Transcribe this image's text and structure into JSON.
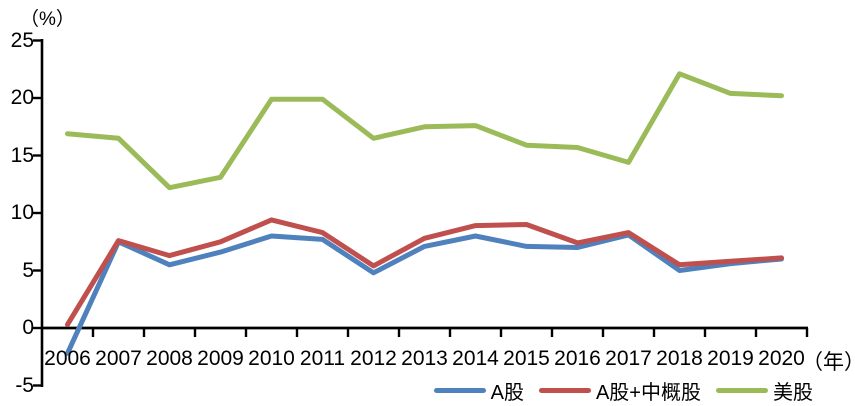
{
  "chart_data": {
    "type": "line",
    "title": "",
    "y_unit_label": "（%）",
    "x_unit_label": "（年）",
    "categories": [
      "2006",
      "2007",
      "2008",
      "2009",
      "2010",
      "2011",
      "2012",
      "2013",
      "2014",
      "2015",
      "2016",
      "2017",
      "2018",
      "2019",
      "2020"
    ],
    "yticks": [
      25,
      20,
      15,
      10,
      5,
      0,
      -5
    ],
    "ylim": [
      -5,
      25
    ],
    "grid": false,
    "legend_position": "bottom-right",
    "axis_color": "#000000",
    "background_color": "#ffffff",
    "series": [
      {
        "name": "A股",
        "color": "#4F81BD",
        "values": [
          -2.2,
          7.5,
          5.5,
          6.6,
          8.0,
          7.7,
          4.8,
          7.1,
          8.0,
          7.1,
          7.0,
          8.1,
          5.0,
          5.6,
          6.0
        ]
      },
      {
        "name": "A股+中概股",
        "color": "#C0504D",
        "values": [
          0.3,
          7.6,
          6.3,
          7.5,
          9.4,
          8.3,
          5.4,
          7.8,
          8.9,
          9.0,
          7.4,
          8.3,
          5.5,
          5.8,
          6.1
        ]
      },
      {
        "name": "美股",
        "color": "#9BBB59",
        "values": [
          16.9,
          16.5,
          12.2,
          13.1,
          19.9,
          19.9,
          16.5,
          17.5,
          17.6,
          15.9,
          15.7,
          14.4,
          22.1,
          20.4,
          20.2
        ]
      }
    ]
  }
}
